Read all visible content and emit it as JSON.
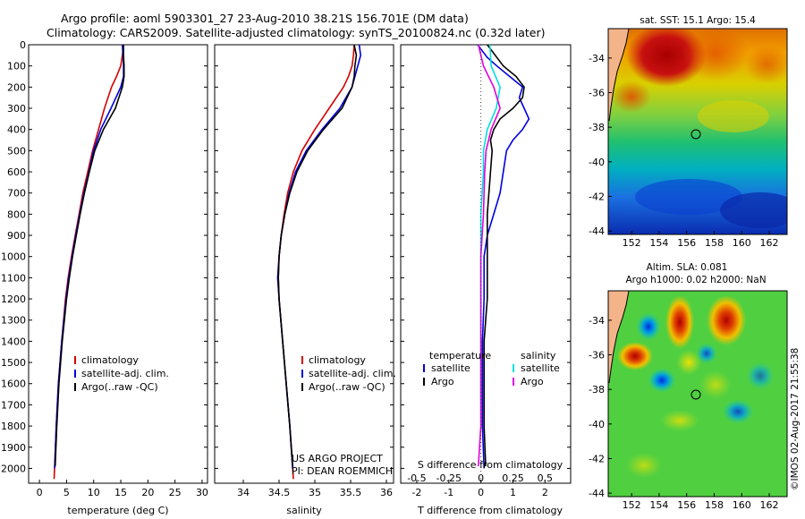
{
  "title_line1": "Argo profile: aoml 5903301_27 23-Aug-2010 38.21S 156.701E (DM data)",
  "title_line2": "Climatology: CARS2009. Satellite-adjusted climatology: synTS_20100824.nc (0.32d later)",
  "sst_title": "sat. SST: 15.1 Argo: 15.4",
  "sla_title1": "Altim. SLA: 0.081",
  "sla_title2": "Argo h1000: 0.02 h2000: NaN",
  "credit": "©IMOS 02-Aug-2017 21:55:38",
  "project_line1": "US ARGO PROJECT",
  "project_line2": "PI: DEAN ROEMMICH",
  "colors": {
    "climatology": "#d40000",
    "satellite": "#0000e0",
    "argo": "#000000",
    "s_satellite": "#00e0e0",
    "s_argo": "#e000e0"
  },
  "chart_data": [
    {
      "type": "line",
      "name": "temperature",
      "xlabel": "temperature (deg C)",
      "ylabel": "",
      "xlim": [
        -2,
        31
      ],
      "ylim": [
        2070,
        0
      ],
      "xticks": [
        0,
        5,
        10,
        15,
        20,
        25,
        30
      ],
      "yticks": [
        0,
        100,
        200,
        300,
        400,
        500,
        600,
        700,
        800,
        900,
        1000,
        1100,
        1200,
        1300,
        1400,
        1500,
        1600,
        1700,
        1800,
        1900,
        2000
      ],
      "legend": [
        "climatology",
        "satellite-adj. clim.",
        "Argo(..raw -QC)"
      ],
      "series": [
        {
          "name": "climatology",
          "depth": [
            0,
            50,
            100,
            150,
            200,
            300,
            400,
            500,
            600,
            700,
            800,
            900,
            1000,
            1100,
            1200,
            1400,
            1600,
            1800,
            2050
          ],
          "values": [
            15.5,
            15.3,
            15.0,
            14.2,
            13.3,
            12.0,
            10.9,
            9.8,
            8.9,
            8.0,
            7.3,
            6.6,
            5.9,
            5.3,
            4.8,
            4.1,
            3.5,
            3.1,
            2.7
          ]
        },
        {
          "name": "satellite-adj. clim.",
          "depth": [
            0,
            50,
            100,
            150,
            200,
            300,
            400,
            500,
            600,
            700,
            800,
            900,
            1000,
            1100,
            1200,
            1400,
            1600,
            1800,
            2000
          ],
          "values": [
            15.3,
            15.4,
            15.5,
            15.5,
            15.0,
            13.2,
            11.3,
            10.0,
            9.1,
            8.2,
            7.4,
            6.7,
            6.0,
            5.4,
            4.9,
            4.1,
            3.5,
            3.1,
            2.8
          ]
        },
        {
          "name": "Argo",
          "depth": [
            0,
            50,
            100,
            150,
            200,
            300,
            400,
            500,
            600,
            700,
            800,
            900,
            1000,
            1100,
            1200,
            1400,
            1600,
            1800,
            1990
          ],
          "values": [
            15.5,
            15.5,
            15.6,
            15.6,
            15.3,
            14.0,
            11.8,
            10.2,
            9.2,
            8.3,
            7.5,
            6.8,
            6.1,
            5.5,
            5.0,
            4.2,
            3.6,
            3.2,
            2.9
          ]
        }
      ]
    },
    {
      "type": "line",
      "name": "salinity",
      "xlabel": "salinity",
      "ylabel": "",
      "xlim": [
        33.6,
        36.1
      ],
      "ylim": [
        2070,
        0
      ],
      "xticks": [
        34,
        34.5,
        35,
        35.5,
        36
      ],
      "legend": [
        "climatology",
        "satellite-adj. clim.",
        "Argo(..raw -QC)"
      ],
      "series": [
        {
          "name": "climatology",
          "depth": [
            0,
            50,
            100,
            150,
            200,
            300,
            400,
            500,
            600,
            700,
            800,
            900,
            1000,
            1100,
            1200,
            1400,
            1600,
            1800,
            2050
          ],
          "values": [
            35.55,
            35.54,
            35.52,
            35.47,
            35.4,
            35.2,
            35.0,
            34.82,
            34.7,
            34.62,
            34.57,
            34.53,
            34.5,
            34.49,
            34.5,
            34.55,
            34.6,
            34.65,
            34.7
          ]
        },
        {
          "name": "satellite-adj. clim.",
          "depth": [
            0,
            50,
            100,
            150,
            200,
            300,
            400,
            500,
            600,
            700,
            800,
            900,
            1000,
            1100,
            1200,
            1400,
            1600,
            1800,
            2000
          ],
          "values": [
            35.62,
            35.64,
            35.6,
            35.56,
            35.52,
            35.35,
            35.1,
            34.88,
            34.73,
            34.64,
            34.58,
            34.53,
            34.5,
            34.48,
            34.5,
            34.55,
            34.6,
            34.65,
            34.69
          ]
        },
        {
          "name": "Argo",
          "depth": [
            0,
            50,
            100,
            150,
            200,
            300,
            400,
            500,
            600,
            700,
            800,
            900,
            1000,
            1100,
            1200,
            1400,
            1600,
            1800,
            1990
          ],
          "values": [
            35.55,
            35.58,
            35.56,
            35.55,
            35.52,
            35.38,
            35.12,
            34.9,
            34.75,
            34.65,
            34.58,
            34.53,
            34.5,
            34.49,
            34.5,
            34.55,
            34.6,
            34.65,
            34.69
          ]
        }
      ]
    },
    {
      "type": "line",
      "name": "difference",
      "xlabel": "T difference from climatology",
      "xlabel_top": "S difference from climatology",
      "xlim": [
        -2.5,
        2.8
      ],
      "ylim": [
        2070,
        0
      ],
      "xticks": [
        -2,
        -1,
        0,
        1,
        2
      ],
      "xticks_top": [
        -0.5,
        -0.25,
        0,
        0.25,
        0.5
      ],
      "xlim_top": [
        -0.625,
        0.7
      ],
      "legend": [
        {
          "group": "temperature",
          "items": [
            "satellite",
            "Argo"
          ]
        },
        {
          "group": "salinity",
          "items": [
            "satellite",
            "Argo"
          ]
        }
      ],
      "series": [
        {
          "name": "temperature satellite",
          "depth": [
            0,
            60,
            100,
            150,
            200,
            250,
            300,
            350,
            400,
            450,
            500,
            600,
            700,
            800,
            900,
            1000,
            1200,
            1400,
            1600,
            1800,
            2000
          ],
          "values": [
            -0.1,
            0.2,
            0.5,
            0.9,
            1.3,
            1.2,
            1.35,
            1.5,
            1.3,
            1.0,
            0.8,
            0.7,
            0.6,
            0.4,
            0.2,
            0.1,
            0.1,
            0.05,
            0.05,
            0.05,
            0.1
          ]
        },
        {
          "name": "temperature Argo",
          "depth": [
            0,
            60,
            100,
            150,
            200,
            250,
            300,
            350,
            400,
            450,
            500,
            600,
            700,
            800,
            900,
            1000,
            1200,
            1400,
            1600,
            1800,
            1990
          ],
          "values": [
            0.2,
            0.5,
            0.7,
            1.1,
            1.35,
            1.3,
            1.0,
            0.6,
            0.4,
            0.3,
            0.35,
            0.3,
            0.25,
            0.2,
            0.2,
            0.2,
            0.2,
            0.1,
            0.1,
            0.1,
            0.15
          ]
        },
        {
          "name": "salinity satellite",
          "depth": [
            0,
            100,
            200,
            300,
            400,
            500,
            600,
            800,
            1000,
            1200,
            1400,
            1700
          ],
          "values": [
            0.07,
            0.08,
            0.15,
            0.12,
            0.05,
            0.02,
            0.02,
            0.0,
            0.0,
            0.0,
            0.0,
            0.0
          ]
        },
        {
          "name": "salinity Argo",
          "depth": [
            0,
            100,
            200,
            300,
            400,
            500,
            600,
            800,
            1000,
            1200,
            1400,
            1800,
            1990
          ],
          "values": [
            -0.02,
            0.02,
            0.1,
            0.15,
            0.08,
            0.04,
            0.03,
            0.02,
            0.0,
            0.0,
            0.0,
            0.0,
            -0.02
          ]
        }
      ]
    },
    {
      "type": "heatmap",
      "name": "sst_map",
      "title": "sat. SST: 15.1 Argo: 15.4",
      "xticks": [
        152,
        154,
        156,
        158,
        160,
        162
      ],
      "yticks": [
        -34,
        -36,
        -38,
        -40,
        -42,
        -44
      ],
      "xlim": [
        150.3,
        163.3
      ],
      "ylim": [
        -44.2,
        -32.3
      ],
      "argo_position": [
        156.7,
        -38.21
      ]
    },
    {
      "type": "heatmap",
      "name": "sla_map",
      "title": "Altim. SLA: 0.081",
      "xticks": [
        152,
        154,
        156,
        158,
        160,
        162
      ],
      "yticks": [
        -34,
        -36,
        -38,
        -40,
        -42,
        -44
      ],
      "xlim": [
        150.3,
        163.3
      ],
      "ylim": [
        -44.2,
        -32.3
      ],
      "argo_position": [
        156.7,
        -38.21
      ]
    }
  ]
}
